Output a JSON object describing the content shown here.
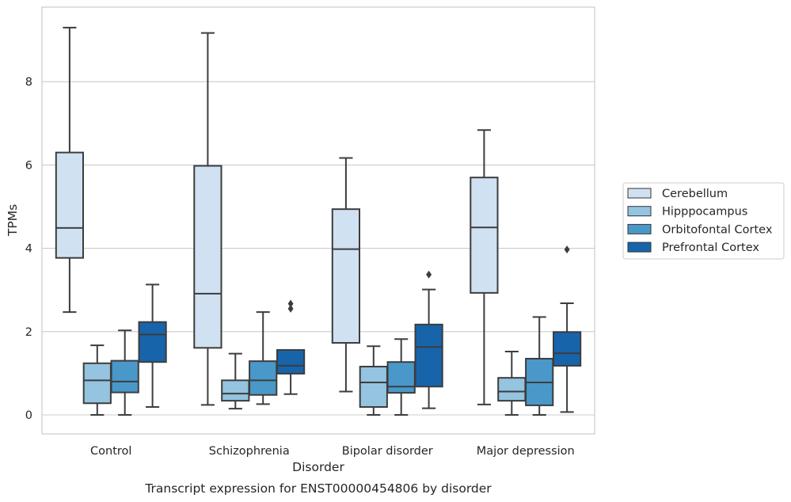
{
  "chart_data": {
    "type": "box",
    "title": "",
    "caption": "Transcript expression for ENST00000454806 by disorder",
    "xlabel": "Disorder",
    "ylabel": "TPMs",
    "ylim": [
      -0.45,
      9.8
    ],
    "yticks": [
      0,
      2,
      4,
      6,
      8
    ],
    "grid": "horizontal",
    "legend_position": "right",
    "categories": [
      "Control",
      "Schizophrenia",
      "Bipolar disorder",
      "Major depression"
    ],
    "series": [
      {
        "name": "Cerebellum",
        "color": "#d0e1f2",
        "boxes": [
          {
            "whisker_low": 2.47,
            "q1": 3.77,
            "median": 4.49,
            "q3": 6.3,
            "whisker_high": 9.3,
            "outliers": []
          },
          {
            "whisker_low": 0.24,
            "q1": 1.61,
            "median": 2.91,
            "q3": 5.98,
            "whisker_high": 9.17,
            "outliers": []
          },
          {
            "whisker_low": 0.56,
            "q1": 1.73,
            "median": 3.98,
            "q3": 4.94,
            "whisker_high": 6.17,
            "outliers": []
          },
          {
            "whisker_low": 0.25,
            "q1": 2.93,
            "median": 4.5,
            "q3": 5.7,
            "whisker_high": 6.84,
            "outliers": []
          }
        ]
      },
      {
        "name": "Hipppocampus",
        "color": "#94c4df",
        "boxes": [
          {
            "whisker_low": 0.0,
            "q1": 0.28,
            "median": 0.83,
            "q3": 1.24,
            "whisker_high": 1.67,
            "outliers": []
          },
          {
            "whisker_low": 0.15,
            "q1": 0.34,
            "median": 0.51,
            "q3": 0.83,
            "whisker_high": 1.47,
            "outliers": []
          },
          {
            "whisker_low": 0.0,
            "q1": 0.19,
            "median": 0.78,
            "q3": 1.16,
            "whisker_high": 1.65,
            "outliers": []
          },
          {
            "whisker_low": 0.0,
            "q1": 0.34,
            "median": 0.56,
            "q3": 0.89,
            "whisker_high": 1.52,
            "outliers": []
          }
        ]
      },
      {
        "name": "Orbitofontal Cortex",
        "color": "#4a98c9",
        "boxes": [
          {
            "whisker_low": 0.0,
            "q1": 0.54,
            "median": 0.8,
            "q3": 1.3,
            "whisker_high": 2.03,
            "outliers": []
          },
          {
            "whisker_low": 0.26,
            "q1": 0.48,
            "median": 0.83,
            "q3": 1.29,
            "whisker_high": 2.47,
            "outliers": []
          },
          {
            "whisker_low": 0.0,
            "q1": 0.53,
            "median": 0.68,
            "q3": 1.27,
            "whisker_high": 1.82,
            "outliers": []
          },
          {
            "whisker_low": 0.0,
            "q1": 0.23,
            "median": 0.78,
            "q3": 1.35,
            "whisker_high": 2.35,
            "outliers": []
          }
        ]
      },
      {
        "name": "Prefrontal Cortex",
        "color": "#1764ab",
        "boxes": [
          {
            "whisker_low": 0.19,
            "q1": 1.27,
            "median": 1.93,
            "q3": 2.23,
            "whisker_high": 3.13,
            "outliers": []
          },
          {
            "whisker_low": 0.5,
            "q1": 0.99,
            "median": 1.18,
            "q3": 1.56,
            "whisker_high": 1.56,
            "outliers": [
              2.55,
              2.67
            ]
          },
          {
            "whisker_low": 0.16,
            "q1": 0.68,
            "median": 1.63,
            "q3": 2.17,
            "whisker_high": 3.01,
            "outliers": [
              3.37
            ]
          },
          {
            "whisker_low": 0.07,
            "q1": 1.18,
            "median": 1.48,
            "q3": 1.99,
            "whisker_high": 2.68,
            "outliers": [
              3.97
            ]
          }
        ]
      }
    ]
  }
}
